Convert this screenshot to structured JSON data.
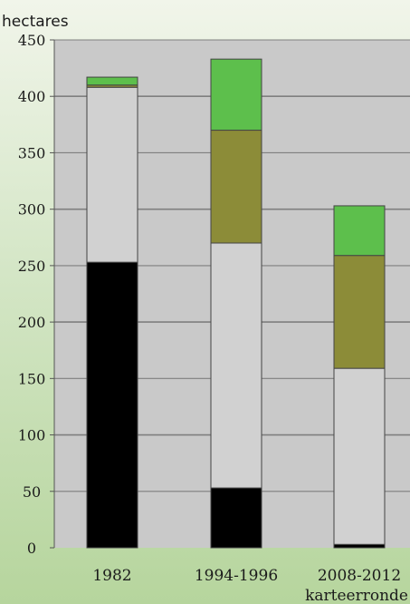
{
  "chart_data": {
    "type": "bar",
    "stacked": true,
    "ylabel": "hectares",
    "xlabel": "karteerronde",
    "ylim": [
      0,
      450
    ],
    "yticks": [
      0,
      50,
      100,
      150,
      200,
      250,
      300,
      350,
      400,
      450
    ],
    "grid": true,
    "categories": [
      "1982",
      "1994-1996",
      "2008-2012"
    ],
    "series": [
      {
        "color": "#000000",
        "values": [
          253,
          53,
          3
        ]
      },
      {
        "color": "#d1d1d1",
        "values": [
          155,
          217,
          156
        ]
      },
      {
        "color": "#8c8c38",
        "values": [
          2,
          100,
          100
        ]
      },
      {
        "color": "#5dbf4c",
        "values": [
          7,
          63,
          44
        ]
      }
    ]
  },
  "colors": {
    "plot_background": "#c9c9c9",
    "gridline": "#7f7f7f",
    "axis": "#555555"
  }
}
